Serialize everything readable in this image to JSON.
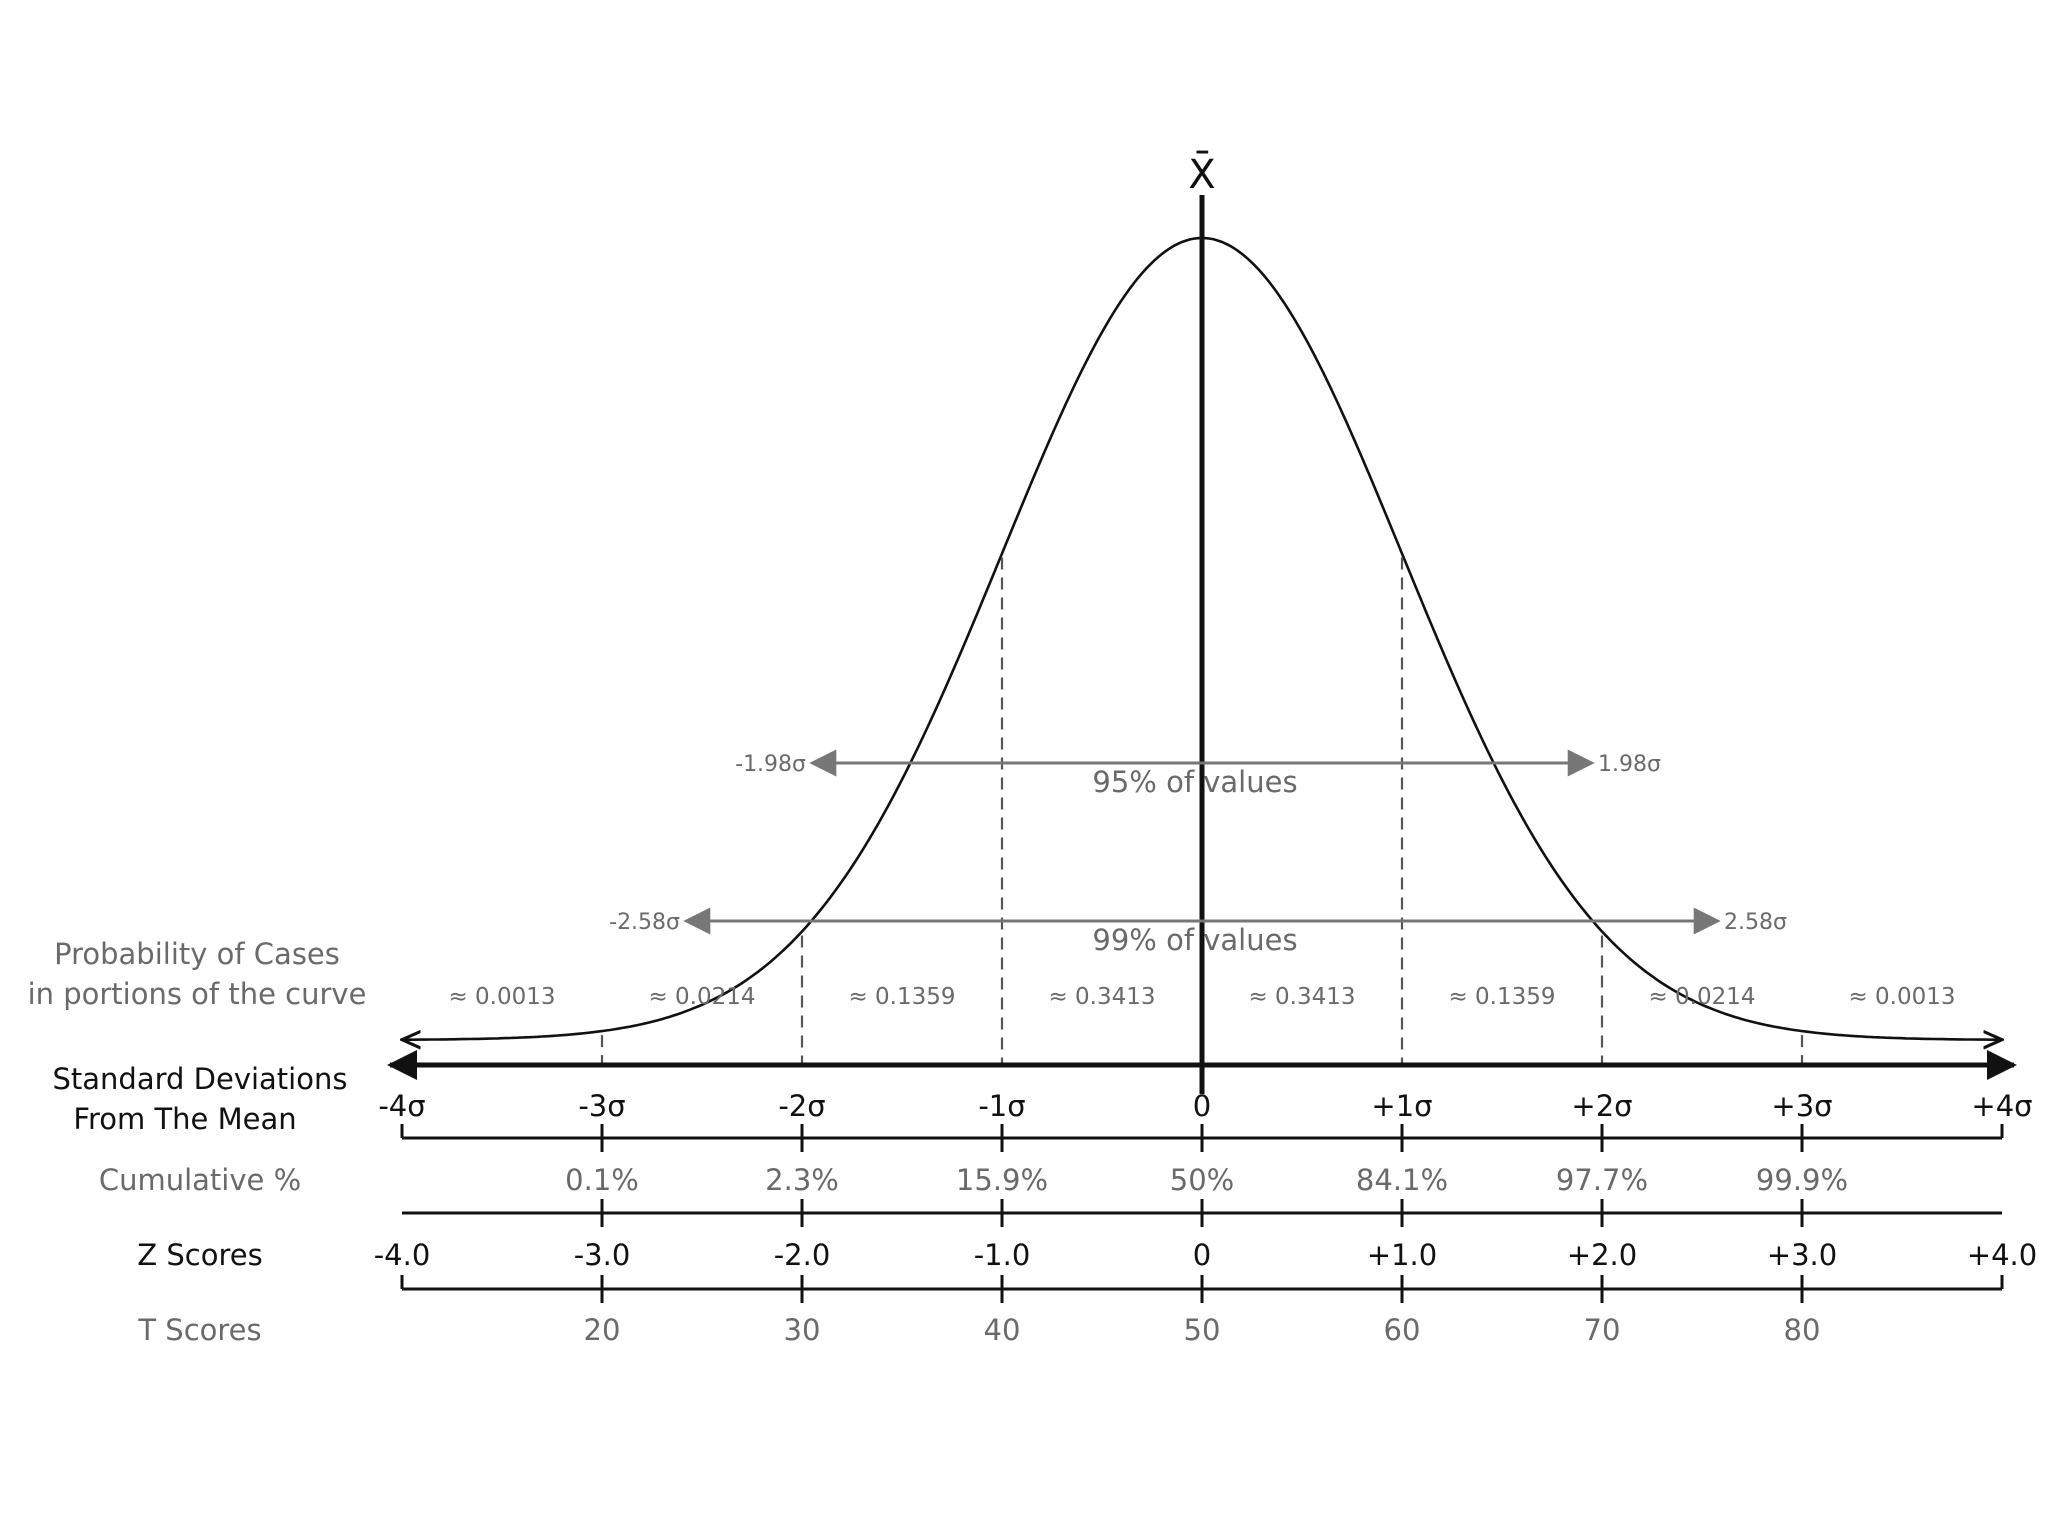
{
  "mean_symbol": "X̄",
  "probability_label": [
    "Probability of Cases",
    "in portions of the curve"
  ],
  "sd_label": [
    "Standard Deviations",
    "From The Mean"
  ],
  "cumulative_label": "Cumulative %",
  "z_label": "Z Scores",
  "t_label": "T Scores",
  "interval_95": {
    "left_label": "-1.98σ",
    "right_label": "1.98σ",
    "text": "95% of values",
    "bounds_sigma": [
      -1.98,
      1.98
    ]
  },
  "interval_99": {
    "left_label": "-2.58σ",
    "right_label": "2.58σ",
    "text": "99% of values",
    "bounds_sigma": [
      -2.58,
      2.58
    ]
  },
  "portions": [
    "≈ 0.0013",
    "≈ 0.0214",
    "≈ 0.1359",
    "≈ 0.3413",
    "≈ 0.3413",
    "≈ 0.1359",
    "≈ 0.0214",
    "≈ 0.0013"
  ],
  "sd_ticks": [
    "-4σ",
    "-3σ",
    "-2σ",
    "-1σ",
    "0",
    "+1σ",
    "+2σ",
    "+3σ",
    "+4σ"
  ],
  "cumulative": [
    "",
    "0.1%",
    "2.3%",
    "15.9%",
    "50%",
    "84.1%",
    "97.7%",
    "99.9%",
    ""
  ],
  "z_scores": [
    "-4.0",
    "-3.0",
    "-2.0",
    "-1.0",
    "0",
    "+1.0",
    "+2.0",
    "+3.0",
    "+4.0"
  ],
  "t_scores": [
    "",
    "20",
    "30",
    "40",
    "50",
    "60",
    "70",
    "80",
    ""
  ],
  "colors": {
    "curve": "#111111",
    "axis": "#111111",
    "gray_text": "#6a6a6a",
    "interval": "#777777"
  }
}
